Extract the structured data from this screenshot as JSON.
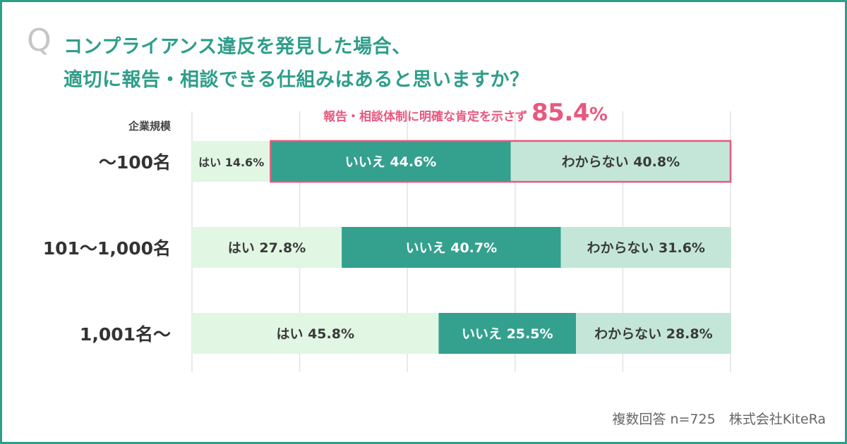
{
  "title": {
    "q_mark": "Q",
    "line1": "コンプライアンス違反を発見した場合、",
    "line2": "適切に報告・相談できる仕組みはあると思いますか？"
  },
  "category_header": "企業規模",
  "callout": {
    "text": "報告・相談体制に明確な肯定を示さず",
    "value": "85.4",
    "unit": "%"
  },
  "source": "複数回答 n=725　株式会社KiteRa",
  "colors": {
    "accent": "#2e9e8a",
    "yes": "#e1f6e3",
    "no": "#34a08e",
    "dont_know": "#c3e6d8",
    "highlight": "#e8587f",
    "grid": "#e2e2e2",
    "label_dark": "#3a3a3a",
    "label_light": "#ffffff"
  },
  "chart_data": {
    "type": "bar",
    "orientation": "horizontal",
    "stacked": true,
    "percent_stacked": true,
    "xlim": [
      0,
      100
    ],
    "grid": true,
    "categories": [
      "～100名",
      "101～1,000名",
      "1,001名～"
    ],
    "series": [
      {
        "name": "はい",
        "values": [
          14.6,
          27.8,
          45.8
        ],
        "labels": [
          "はい 14.6%",
          "はい 27.8%",
          "はい 45.8%"
        ]
      },
      {
        "name": "いいえ",
        "values": [
          44.6,
          40.7,
          25.5
        ],
        "labels": [
          "いいえ 44.6%",
          "いいえ 40.7%",
          "いいえ 25.5%"
        ]
      },
      {
        "name": "わからない",
        "values": [
          40.8,
          31.6,
          28.8
        ],
        "labels": [
          "わからない 40.8%",
          "わからない 31.6%",
          "わからない 28.8%"
        ]
      }
    ],
    "highlight": {
      "category_index": 0,
      "series_from": 1,
      "series_to": 2
    }
  }
}
